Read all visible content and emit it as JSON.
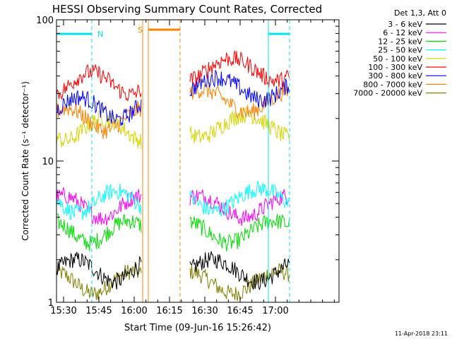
{
  "chart_data": {
    "type": "line",
    "title": "HESSI Observing Summary Count Rates, Corrected",
    "xlabel": "Start Time (09-Jun-16 15:26:42)",
    "ylabel": "Corrected Count Rate (s⁻¹ detector⁻¹)",
    "y_scale": "log",
    "ylim": [
      1,
      100
    ],
    "y_ticks": [
      "1",
      "10",
      "100"
    ],
    "xlim_minutes": [
      15.45,
      17.45
    ],
    "x_ticks": [
      "15:30",
      "15:45",
      "16:00",
      "16:15",
      "16:30",
      "16:45",
      "17:00"
    ],
    "legend_position": "top-right",
    "legend_header": "Det 1,3, Att 0",
    "footer_date": "11-Apr-2018 23:11",
    "flag_labels": {
      "night": "N",
      "saa": "S"
    },
    "intervals": {
      "night": [
        [
          15.45,
          15.7
        ],
        [
          16.95,
          17.1
        ]
      ],
      "saa": [
        [
          16.1,
          16.325
        ]
      ],
      "data_gap": [
        16.1,
        16.395
      ]
    },
    "series": [
      {
        "name": "3 - 6 keV",
        "color": "#000000",
        "segments": [
          [
            15.45,
            16.05,
            1.7
          ],
          [
            16.395,
            17.1,
            1.7
          ]
        ]
      },
      {
        "name": "6 - 12 keV",
        "color": "#ff00ff",
        "segments": [
          [
            15.45,
            16.05,
            4.8
          ],
          [
            16.395,
            17.1,
            4.8
          ]
        ]
      },
      {
        "name": "12 - 25 keV",
        "color": "#00dd00",
        "segments": [
          [
            15.45,
            16.05,
            3.2
          ],
          [
            16.395,
            17.1,
            3.2
          ]
        ]
      },
      {
        "name": "25 - 50 keV",
        "color": "#00ffff",
        "segments": [
          [
            15.45,
            16.05,
            5.2
          ],
          [
            16.395,
            17.1,
            5.4
          ]
        ]
      },
      {
        "name": "50 - 100 keV",
        "color": "#d4d400",
        "segments": [
          [
            15.45,
            16.05,
            17
          ],
          [
            16.395,
            17.1,
            18
          ]
        ]
      },
      {
        "name": "100 - 300 keV",
        "color": "#ff0000",
        "segments": [
          [
            15.45,
            16.05,
            36
          ],
          [
            16.395,
            17.1,
            45
          ]
        ]
      },
      {
        "name": "300 - 800 keV",
        "color": "#0000ff",
        "segments": [
          [
            15.45,
            16.05,
            24
          ],
          [
            16.395,
            17.1,
            33
          ]
        ]
      },
      {
        "name": "800 - 7000 keV",
        "color": "#ff8000",
        "segments": [
          [
            15.45,
            16.05,
            20
          ],
          [
            16.395,
            17.1,
            27
          ]
        ]
      },
      {
        "name": "7000 - 20000 keV",
        "color": "#808000",
        "segments": [
          [
            15.45,
            16.05,
            1.4
          ],
          [
            16.395,
            17.1,
            1.4
          ]
        ]
      }
    ]
  }
}
